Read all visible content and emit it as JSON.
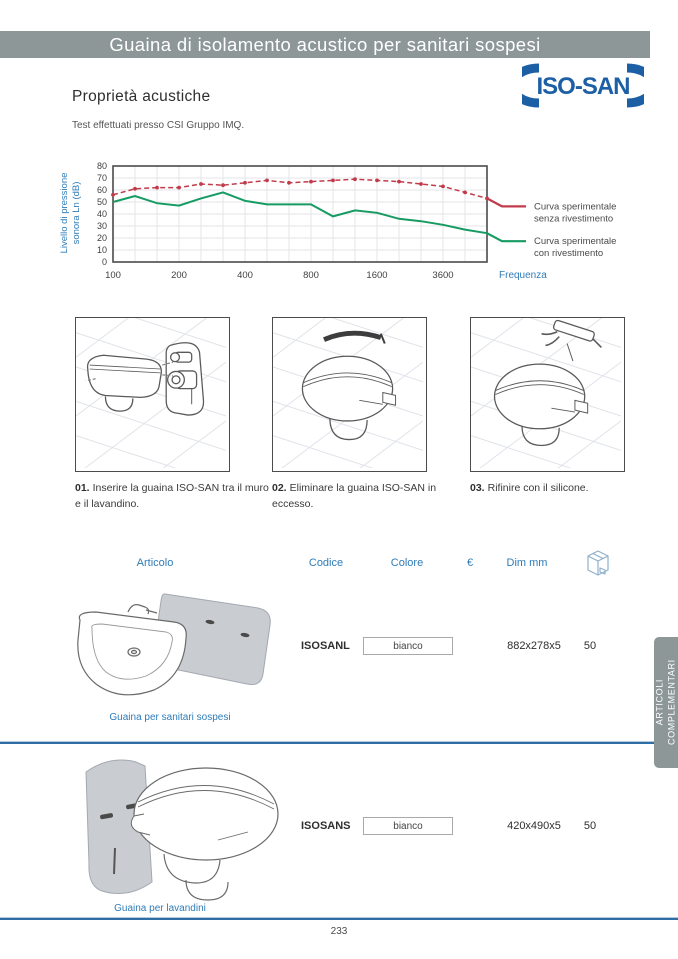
{
  "page": {
    "title_bar": "Guaina di isolamento acustico per sanitari sospesi",
    "page_number": "233"
  },
  "logo": {
    "text": "ISO-SAN"
  },
  "section": {
    "heading": "Proprietà acustiche",
    "subheading": "Test effettuati presso CSI Gruppo IMQ."
  },
  "chart_data": {
    "type": "line",
    "title": "",
    "ylabel": "Livello di pressione sonora Ln (dB)",
    "xlabel": "Frequenza",
    "ylim": [
      0,
      80
    ],
    "y_ticks": [
      0,
      10,
      20,
      30,
      40,
      50,
      60,
      70,
      80
    ],
    "x_tick_labels": [
      "100",
      "200",
      "400",
      "800",
      "1600",
      "3600"
    ],
    "x_tick_indices": [
      0,
      3,
      6,
      9,
      12,
      15
    ],
    "grid": true,
    "legend_position": "right",
    "series": [
      {
        "name": "Curva sperimentale senza rivestimento",
        "legend_lines": [
          "Curva sperimentale",
          "senza rivestimento"
        ],
        "color": "#c23b4b",
        "style": "dashed",
        "markers": true,
        "values": [
          56,
          61,
          62,
          62,
          65,
          64,
          66,
          68,
          66,
          67,
          68,
          69,
          68,
          67,
          65,
          63,
          58,
          53
        ]
      },
      {
        "name": "Curva sperimentale con rivestimento",
        "legend_lines": [
          "Curva sperimentale",
          "con rivestimento"
        ],
        "color": "#169b62",
        "style": "solid",
        "markers": false,
        "values": [
          50,
          55,
          49,
          47,
          53,
          58,
          51,
          48,
          48,
          48,
          38,
          43,
          41,
          36,
          34,
          31,
          27,
          24
        ]
      }
    ]
  },
  "steps": [
    {
      "num": "01.",
      "text": "Inserire la guaina ISO-SAN tra il muro e il lavandino."
    },
    {
      "num": "02.",
      "text": "Eliminare la guaina ISO-SAN in eccesso."
    },
    {
      "num": "03.",
      "text": "Rifinire con il silicone."
    }
  ],
  "table": {
    "headers": {
      "articolo": "Articolo",
      "codice": "Codice",
      "colore": "Colore",
      "euro": "€",
      "dim": "Dim mm"
    },
    "rows": [
      {
        "code": "ISOSANL",
        "color": "bianco",
        "dim": "882x278x5",
        "pack": "50",
        "caption": "Guaina per sanitari sospesi"
      },
      {
        "code": "ISOSANS",
        "color": "bianco",
        "dim": "420x490x5",
        "pack": "50",
        "caption": "Guaina per lavandini"
      }
    ]
  },
  "side_tab": {
    "line1": "ARTICOLI",
    "line2": "COMPLEMENTARI"
  },
  "colors": {
    "accent_blue": "#2e7cb8",
    "logo_blue": "#1d5fa5",
    "bar_gray": "#8d9798",
    "rule_blue": "#2f6ea5",
    "curve_red": "#c23b4b",
    "curve_green": "#169b62",
    "sheath_gray": "#c9cdd2"
  }
}
